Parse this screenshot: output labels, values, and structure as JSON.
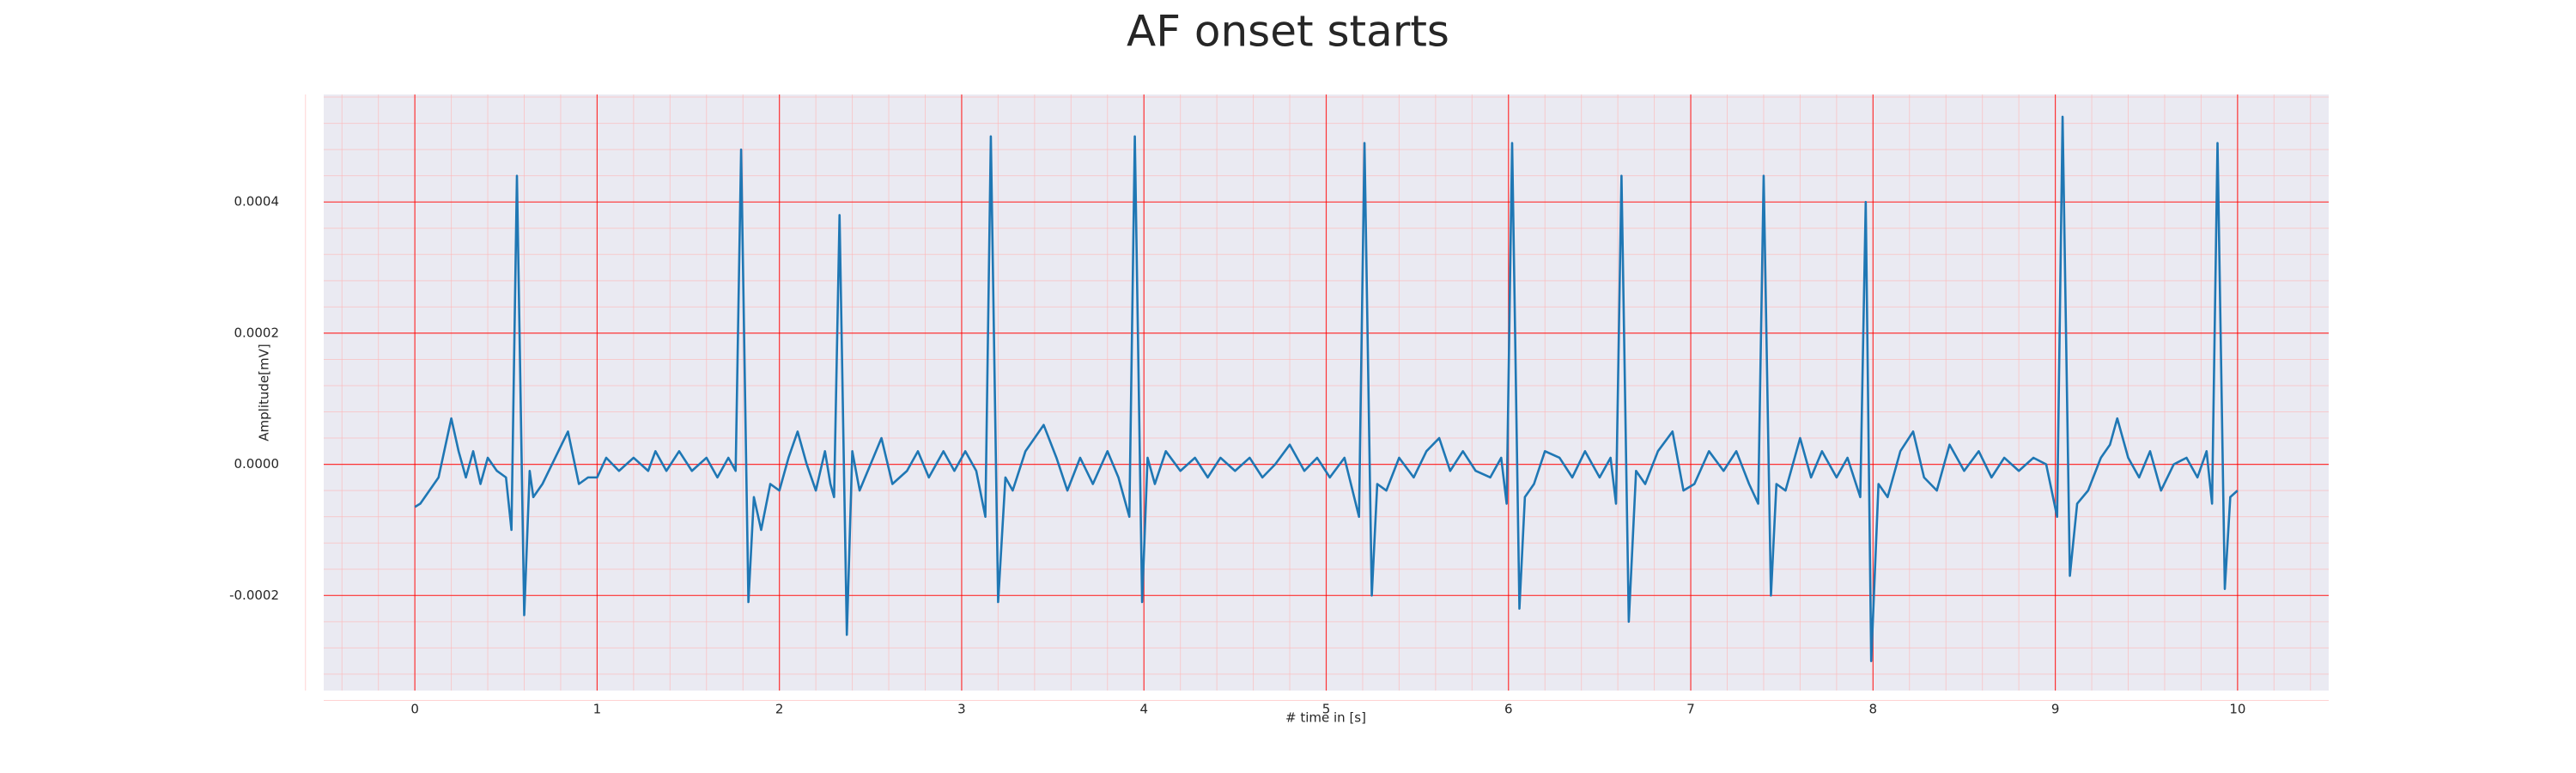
{
  "chart_data": {
    "type": "line",
    "title": "AF onset starts",
    "xlabel": "# time in [s]",
    "ylabel": "Amplitude[mV]",
    "color": "#1f77b4",
    "grid": true,
    "minor_grid": true,
    "xlim": [
      -0.5,
      10.5
    ],
    "xticks": [
      0,
      1,
      2,
      3,
      4,
      5,
      6,
      7,
      8,
      9,
      10
    ],
    "ylim": [
      -0.000345,
      0.000564
    ],
    "yticks": [
      -0.0002,
      {
        "value": 0,
        "label": "0.0000"
      },
      0.0002,
      0.0004
    ],
    "x": [
      0,
      0.03,
      0.08,
      0.13,
      0.2,
      0.24,
      0.28,
      0.32,
      0.36,
      0.4,
      0.45,
      0.5,
      0.53,
      0.56,
      0.6,
      0.63,
      0.65,
      0.7,
      0.77,
      0.84,
      0.9,
      0.95,
      1.0,
      1.05,
      1.12,
      1.2,
      1.28,
      1.32,
      1.38,
      1.45,
      1.52,
      1.6,
      1.66,
      1.72,
      1.76,
      1.79,
      1.83,
      1.86,
      1.9,
      1.95,
      2.0,
      2.05,
      2.1,
      2.15,
      2.2,
      2.25,
      2.28,
      2.3,
      2.33,
      2.37,
      2.4,
      2.44,
      2.5,
      2.56,
      2.62,
      2.7,
      2.76,
      2.82,
      2.9,
      2.96,
      3.02,
      3.08,
      3.13,
      3.16,
      3.2,
      3.24,
      3.28,
      3.35,
      3.45,
      3.52,
      3.58,
      3.65,
      3.72,
      3.8,
      3.86,
      3.92,
      3.95,
      3.99,
      4.02,
      4.06,
      4.12,
      4.2,
      4.28,
      4.35,
      4.42,
      4.5,
      4.58,
      4.65,
      4.72,
      4.8,
      4.88,
      4.95,
      5.02,
      5.1,
      5.18,
      5.21,
      5.25,
      5.28,
      5.33,
      5.4,
      5.48,
      5.55,
      5.62,
      5.68,
      5.75,
      5.82,
      5.9,
      5.96,
      5.99,
      6.02,
      6.06,
      6.09,
      6.14,
      6.2,
      6.28,
      6.35,
      6.42,
      6.5,
      6.56,
      6.59,
      6.62,
      6.66,
      6.7,
      6.75,
      6.82,
      6.9,
      6.96,
      7.02,
      7.1,
      7.18,
      7.25,
      7.32,
      7.37,
      7.4,
      7.44,
      7.47,
      7.52,
      7.6,
      7.66,
      7.72,
      7.8,
      7.86,
      7.93,
      7.96,
      7.99,
      8.03,
      8.08,
      8.15,
      8.22,
      8.28,
      8.35,
      8.42,
      8.5,
      8.58,
      8.65,
      8.72,
      8.8,
      8.88,
      8.95,
      9.01,
      9.04,
      9.08,
      9.12,
      9.18,
      9.25,
      9.3,
      9.34,
      9.4,
      9.46,
      9.52,
      9.58,
      9.65,
      9.72,
      9.78,
      9.83,
      9.86,
      9.89,
      9.93,
      9.96,
      10.0
    ],
    "values": [
      -6.5e-05,
      -6e-05,
      -4e-05,
      -2e-05,
      7e-05,
      2e-05,
      -2e-05,
      2e-05,
      -3e-05,
      1e-05,
      -1e-05,
      -2e-05,
      -0.0001,
      0.00044,
      -0.00023,
      -1e-05,
      -5e-05,
      -3e-05,
      1e-05,
      5e-05,
      -3e-05,
      -2e-05,
      -2e-05,
      1e-05,
      -1e-05,
      1e-05,
      -1e-05,
      2e-05,
      -1e-05,
      2e-05,
      -1e-05,
      1e-05,
      -2e-05,
      1e-05,
      -1e-05,
      0.00048,
      -0.00021,
      -5e-05,
      -0.0001,
      -3e-05,
      -4e-05,
      1e-05,
      5e-05,
      0.0,
      -4e-05,
      2e-05,
      -3e-05,
      -5e-05,
      0.00038,
      -0.00026,
      2e-05,
      -4e-05,
      0.0,
      4e-05,
      -3e-05,
      -1e-05,
      2e-05,
      -2e-05,
      2e-05,
      -1e-05,
      2e-05,
      -1e-05,
      -8e-05,
      0.0005,
      -0.00021,
      -2e-05,
      -4e-05,
      2e-05,
      6e-05,
      1e-05,
      -4e-05,
      1e-05,
      -3e-05,
      2e-05,
      -2e-05,
      -8e-05,
      0.0005,
      -0.00021,
      1e-05,
      -3e-05,
      2e-05,
      -1e-05,
      1e-05,
      -2e-05,
      1e-05,
      -1e-05,
      1e-05,
      -2e-05,
      0.0,
      3e-05,
      -1e-05,
      1e-05,
      -2e-05,
      1e-05,
      -8e-05,
      0.00049,
      -0.0002,
      -3e-05,
      -4e-05,
      1e-05,
      -2e-05,
      2e-05,
      4e-05,
      -1e-05,
      2e-05,
      -1e-05,
      -2e-05,
      1e-05,
      -6e-05,
      0.00049,
      -0.00022,
      -5e-05,
      -3e-05,
      2e-05,
      1e-05,
      -2e-05,
      2e-05,
      -2e-05,
      1e-05,
      -6e-05,
      0.00044,
      -0.00024,
      -1e-05,
      -3e-05,
      2e-05,
      5e-05,
      -4e-05,
      -3e-05,
      2e-05,
      -1e-05,
      2e-05,
      -3e-05,
      -6e-05,
      0.00044,
      -0.0002,
      -3e-05,
      -4e-05,
      4e-05,
      -2e-05,
      2e-05,
      -2e-05,
      1e-05,
      -5e-05,
      0.0004,
      -0.0003,
      -3e-05,
      -5e-05,
      2e-05,
      5e-05,
      -2e-05,
      -4e-05,
      3e-05,
      -1e-05,
      2e-05,
      -2e-05,
      1e-05,
      -1e-05,
      1e-05,
      0.0,
      -8e-05,
      0.00053,
      -0.00017,
      -6e-05,
      -4e-05,
      1e-05,
      3e-05,
      7e-05,
      1e-05,
      -2e-05,
      2e-05,
      -4e-05,
      0.0,
      1e-05,
      -2e-05,
      2e-05,
      -6e-05,
      0.00049,
      -0.00019,
      -5e-05,
      -4e-05
    ]
  }
}
